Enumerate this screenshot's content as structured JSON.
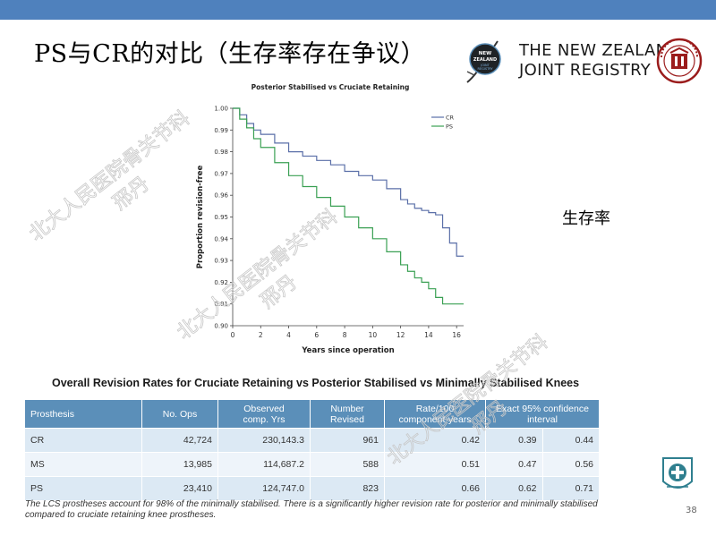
{
  "slide": {
    "title": "PS与CR的对比（生存率存在争议）",
    "side_label": "生存率",
    "page_number": "38",
    "accent_color": "#4f81bd"
  },
  "logos": {
    "nzjr_badge_text": "NEW ZEALAND JOINT REGISTRY",
    "nzjr_line1": "THE NEW ZEALAND",
    "nzjr_line2": "JOINT REGISTRY",
    "pku_icon": "peking-university-seal-icon",
    "hospital_icon": "hospital-seal-icon"
  },
  "watermark": {
    "line1": "北大人民医院骨关节科",
    "line2": "邢丹"
  },
  "chart_data": {
    "type": "line",
    "title": "Posterior Stabilised vs Cruciate Retaining",
    "xlabel": "Years since operation",
    "ylabel": "Proportion revision-free",
    "xlim": [
      0,
      16.5
    ],
    "ylim": [
      0.9,
      1.0
    ],
    "xticks": [
      0,
      2,
      4,
      6,
      8,
      10,
      12,
      14,
      16
    ],
    "yticks": [
      0.9,
      0.91,
      0.92,
      0.93,
      0.94,
      0.95,
      0.96,
      0.97,
      0.98,
      0.99,
      1.0
    ],
    "ytick_labels": [
      "0.90",
      "0.91",
      "0.92",
      "0.93",
      "0.94",
      "0.95",
      "0.96",
      "0.97",
      "0.98",
      "0.99",
      "1.00"
    ],
    "legend_position": "top-right",
    "series": [
      {
        "name": "CR",
        "color": "#5a6fa8",
        "x": [
          0,
          0.5,
          1,
          1.5,
          2,
          3,
          4,
          5,
          6,
          7,
          8,
          9,
          10,
          11,
          12,
          12.5,
          13,
          13.5,
          14,
          14.5,
          15,
          15.5,
          16,
          16.5
        ],
        "y": [
          1.0,
          0.997,
          0.993,
          0.99,
          0.988,
          0.984,
          0.98,
          0.978,
          0.976,
          0.974,
          0.971,
          0.969,
          0.967,
          0.963,
          0.958,
          0.956,
          0.954,
          0.953,
          0.952,
          0.951,
          0.945,
          0.938,
          0.932,
          0.932
        ]
      },
      {
        "name": "PS",
        "color": "#3aa053",
        "x": [
          0,
          0.5,
          1,
          1.5,
          2,
          3,
          4,
          5,
          6,
          7,
          8,
          9,
          10,
          11,
          12,
          12.5,
          13,
          13.5,
          14,
          14.5,
          15,
          15.5,
          16,
          16.5
        ],
        "y": [
          1.0,
          0.995,
          0.991,
          0.986,
          0.982,
          0.975,
          0.969,
          0.964,
          0.959,
          0.955,
          0.95,
          0.945,
          0.94,
          0.934,
          0.928,
          0.925,
          0.922,
          0.92,
          0.917,
          0.913,
          0.91,
          0.91,
          0.91,
          0.91
        ]
      }
    ]
  },
  "table": {
    "title": "Overall Revision Rates for Cruciate Retaining vs Posterior Stabilised vs Minimally Stabilised Knees",
    "headers": {
      "prosthesis": "Prosthesis",
      "ops": "No. Ops",
      "yrs_line1": "Observed",
      "yrs_line2": "comp. Yrs",
      "revised_line1": "Number",
      "revised_line2": "Revised",
      "rate_line1": "Rate/100",
      "rate_line2": "component-years",
      "ci_line1": "Exact 95% confidence",
      "ci_line2": "interval"
    },
    "rows": [
      {
        "prosthesis": "CR",
        "ops": "42,724",
        "yrs": "230,143.3",
        "revised": "961",
        "rate": "0.42",
        "ci_low": "0.39",
        "ci_high": "0.44"
      },
      {
        "prosthesis": "MS",
        "ops": "13,985",
        "yrs": "114,687.2",
        "revised": "588",
        "rate": "0.51",
        "ci_low": "0.47",
        "ci_high": "0.56"
      },
      {
        "prosthesis": "PS",
        "ops": "23,410",
        "yrs": "124,747.0",
        "revised": "823",
        "rate": "0.66",
        "ci_low": "0.62",
        "ci_high": "0.71"
      }
    ]
  },
  "footnote": "The LCS prostheses account for 98% of the minimally stabilised. There is a significantly higher revision rate for posterior and minimally stabilised compared to cruciate retaining knee prostheses."
}
